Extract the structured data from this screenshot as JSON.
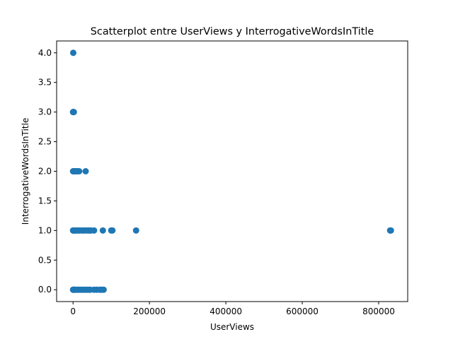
{
  "chart_data": {
    "type": "scatter",
    "title": "Scatterplot entre UserViews y InterrogativeWordsInTitle",
    "xlabel": "UserViews",
    "ylabel": "InterrogativeWordsInTitle",
    "xlim": [
      -43000,
      876000
    ],
    "ylim": [
      -0.2,
      4.2
    ],
    "xticks": [
      0,
      200000,
      400000,
      600000,
      800000
    ],
    "xtick_labels": [
      "0",
      "200000",
      "400000",
      "600000",
      "800000"
    ],
    "yticks": [
      0.0,
      0.5,
      1.0,
      1.5,
      2.0,
      2.5,
      3.0,
      3.5,
      4.0
    ],
    "ytick_labels": [
      "0.0",
      "0.5",
      "1.0",
      "1.5",
      "2.0",
      "2.5",
      "3.0",
      "3.5",
      "4.0"
    ],
    "grid": false,
    "legend": "none",
    "marker_color": "#1f77b4",
    "series": [
      {
        "x": [
          0,
          600,
          1500,
          3000,
          5000,
          8000,
          12000,
          16000,
          20000,
          25000,
          30000,
          35000,
          40000,
          45000,
          55000,
          62000,
          70000,
          75000,
          80000,
          0,
          800,
          2000,
          4000,
          7000,
          10000,
          14000,
          18000,
          24000,
          28000,
          33000,
          38000,
          42000,
          47000,
          55000,
          78000,
          100000,
          103000,
          165000,
          830000,
          832000,
          0,
          800,
          2000,
          4000,
          6000,
          9000,
          12000,
          16000,
          33000,
          0,
          500,
          1200,
          2000,
          500
        ],
        "y": [
          0,
          0,
          0,
          0,
          0,
          0,
          0,
          0,
          0,
          0,
          0,
          0,
          0,
          0,
          0,
          0,
          0,
          0,
          0,
          1,
          1,
          1,
          1,
          1,
          1,
          1,
          1,
          1,
          1,
          1,
          1,
          1,
          1,
          1,
          1,
          1,
          1,
          1,
          1,
          1,
          2,
          2,
          2,
          2,
          2,
          2,
          2,
          2,
          2,
          3,
          3,
          3,
          3,
          4
        ]
      }
    ]
  }
}
